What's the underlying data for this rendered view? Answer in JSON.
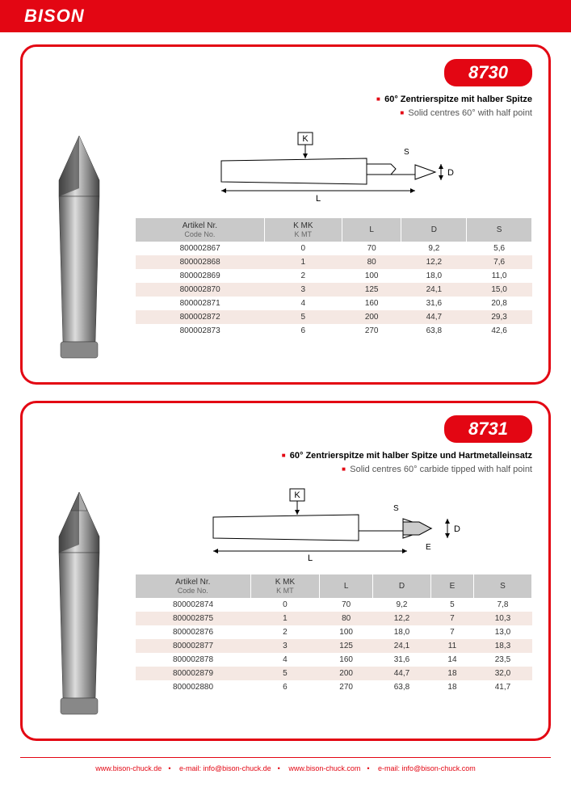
{
  "brand": "BISON",
  "accent": "#e30613",
  "footer": {
    "items": [
      "www.bison-chuck.de",
      "e-mail: info@bison-chuck.de",
      "www.bison-chuck.com",
      "e-mail: info@bison-chuck.com"
    ]
  },
  "panels": [
    {
      "code": "8730",
      "desc_de": "60° Zentrierspitze mit halber Spitze",
      "desc_en": "Solid centres 60° with half point",
      "headers": [
        {
          "de": "Artikel Nr.",
          "en": "Code No."
        },
        {
          "de": "K MK",
          "en": "K MT"
        },
        {
          "de": "L",
          "en": ""
        },
        {
          "de": "D",
          "en": ""
        },
        {
          "de": "S",
          "en": ""
        }
      ],
      "rows": [
        [
          "800002867",
          "0",
          "70",
          "9,2",
          "5,6"
        ],
        [
          "800002868",
          "1",
          "80",
          "12,2",
          "7,6"
        ],
        [
          "800002869",
          "2",
          "100",
          "18,0",
          "11,0"
        ],
        [
          "800002870",
          "3",
          "125",
          "24,1",
          "15,0"
        ],
        [
          "800002871",
          "4",
          "160",
          "31,6",
          "20,8"
        ],
        [
          "800002872",
          "5",
          "200",
          "44,7",
          "29,3"
        ],
        [
          "800002873",
          "6",
          "270",
          "63,8",
          "42,6"
        ]
      ]
    },
    {
      "code": "8731",
      "desc_de": "60° Zentrierspitze mit halber Spitze und Hartmetalleinsatz",
      "desc_en": "Solid centres 60° carbide tipped with half point",
      "headers": [
        {
          "de": "Artikel Nr.",
          "en": "Code No."
        },
        {
          "de": "K MK",
          "en": "K MT"
        },
        {
          "de": "L",
          "en": ""
        },
        {
          "de": "D",
          "en": ""
        },
        {
          "de": "E",
          "en": ""
        },
        {
          "de": "S",
          "en": ""
        }
      ],
      "rows": [
        [
          "800002874",
          "0",
          "70",
          "9,2",
          "5",
          "7,8"
        ],
        [
          "800002875",
          "1",
          "80",
          "12,2",
          "7",
          "10,3"
        ],
        [
          "800002876",
          "2",
          "100",
          "18,0",
          "7",
          "13,0"
        ],
        [
          "800002877",
          "3",
          "125",
          "24,1",
          "11",
          "18,3"
        ],
        [
          "800002878",
          "4",
          "160",
          "31,6",
          "14",
          "23,5"
        ],
        [
          "800002879",
          "5",
          "200",
          "44,7",
          "18",
          "32,0"
        ],
        [
          "800002880",
          "6",
          "270",
          "63,8",
          "18",
          "41,7"
        ]
      ]
    }
  ]
}
